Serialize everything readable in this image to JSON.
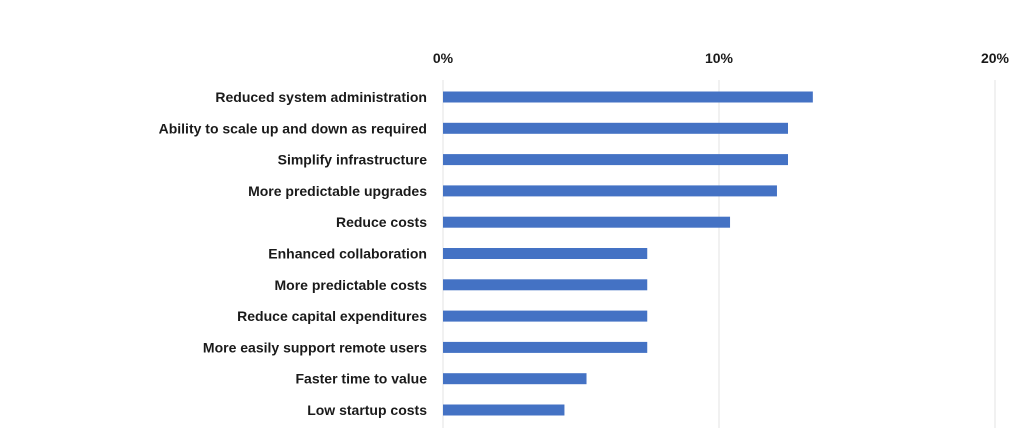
{
  "chart_data": {
    "type": "bar",
    "orientation": "horizontal",
    "categories": [
      "Reduced system administration",
      "Ability to scale up and down as required",
      "Simplify infrastructure",
      "More predictable upgrades",
      "Reduce costs",
      "Enhanced collaboration",
      "More predictable costs",
      "Reduce capital expenditures",
      "More easily support remote users",
      "Faster time to value",
      "Low startup costs"
    ],
    "values": [
      13.4,
      12.5,
      12.5,
      12.1,
      10.4,
      7.4,
      7.4,
      7.4,
      7.4,
      5.2,
      4.4
    ],
    "xlim": [
      0,
      20
    ],
    "xticks": [
      {
        "value": 0,
        "label": "0%"
      },
      {
        "value": 10,
        "label": "10%"
      },
      {
        "value": 20,
        "label": "20%"
      }
    ],
    "axis_position": "top",
    "grid": true,
    "legend": "none",
    "bar_color": "#4472c4",
    "grid_color": "#e3e3e3",
    "title": "",
    "xlabel": "",
    "ylabel": ""
  }
}
